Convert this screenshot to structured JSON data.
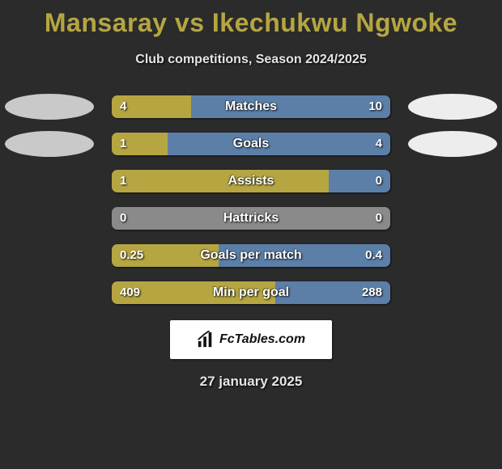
{
  "title": "Mansaray vs Ikechukwu Ngwoke",
  "subtitle": "Club competitions, Season 2024/2025",
  "date": "27 january 2025",
  "logo_text": "FcTables.com",
  "colors": {
    "background": "#2b2b2b",
    "title_color": "#b5a642",
    "text_color": "#e5e5e5",
    "left_bar": "#b5a642",
    "right_bar": "#5c7fa8",
    "neutral_bar": "#8a8a8a",
    "ellipse_left": "#c9c9c9",
    "ellipse_right": "#ededed"
  },
  "rows": [
    {
      "label": "Matches",
      "left_val": "4",
      "right_val": "10",
      "left_pct": 28.6,
      "right_pct": 71.4,
      "show_ellipses": true
    },
    {
      "label": "Goals",
      "left_val": "1",
      "right_val": "4",
      "left_pct": 20.0,
      "right_pct": 80.0,
      "show_ellipses": true
    },
    {
      "label": "Assists",
      "left_val": "1",
      "right_val": "0",
      "left_pct": 78.0,
      "right_pct": 22.0,
      "show_ellipses": false
    },
    {
      "label": "Hattricks",
      "left_val": "0",
      "right_val": "0",
      "left_pct": 0,
      "right_pct": 0,
      "show_ellipses": false
    },
    {
      "label": "Goals per match",
      "left_val": "0.25",
      "right_val": "0.4",
      "left_pct": 38.5,
      "right_pct": 61.5,
      "show_ellipses": false
    },
    {
      "label": "Min per goal",
      "left_val": "409",
      "right_val": "288",
      "left_pct": 58.7,
      "right_pct": 41.3,
      "show_ellipses": false
    }
  ]
}
